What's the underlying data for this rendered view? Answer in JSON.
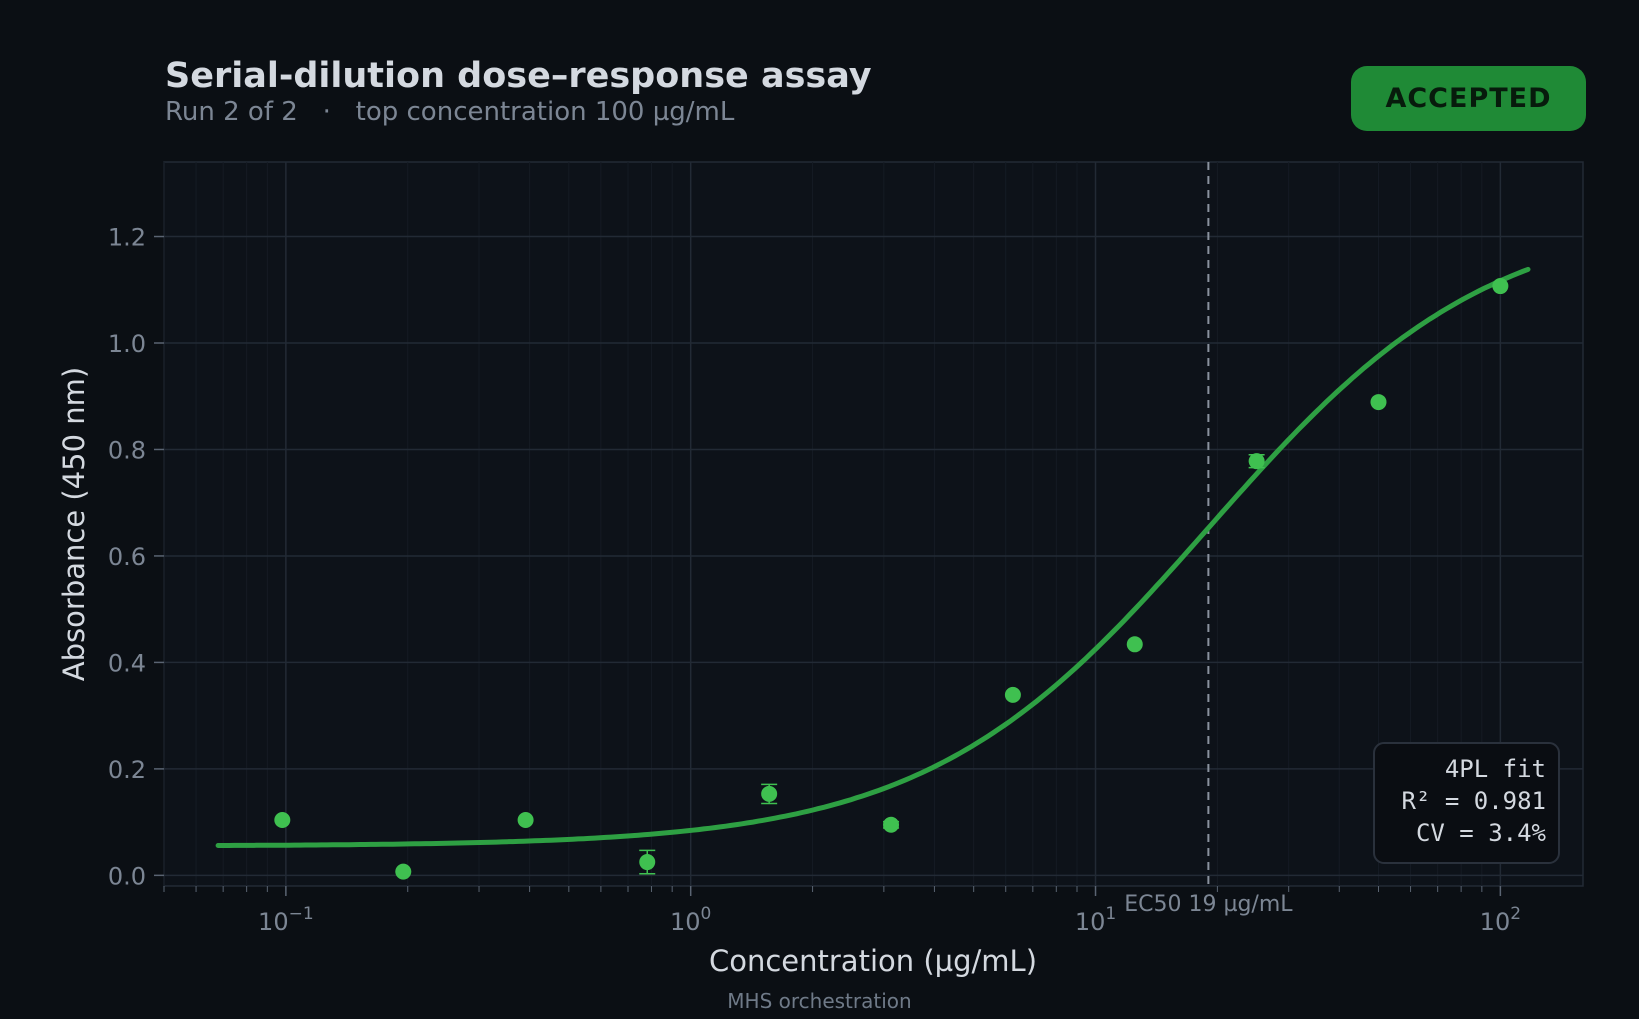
{
  "header": {
    "title": "Serial-dilution dose–response assay",
    "subtitle": "Run 2 of 2   ·   top concentration 100 µg/mL",
    "badge": "ACCEPTED"
  },
  "footer": "MHS orchestration",
  "colors": {
    "background": "#0b0f14",
    "plot_background": "#0d1219",
    "accent": "#2ea043",
    "points": "#3fc050",
    "badge": "#1f8a36"
  },
  "chart_data": {
    "type": "scatter",
    "xlabel": "Concentration  (µg/mL)",
    "ylabel": "Absorbance  (450 nm)",
    "x_scale": "log",
    "xlim": [
      0.05,
      160
    ],
    "ylim": [
      -0.02,
      1.34
    ],
    "x_ticks": [
      {
        "value": 0.1,
        "base": "10",
        "exp": "−1"
      },
      {
        "value": 1,
        "base": "10",
        "exp": "0"
      },
      {
        "value": 10,
        "base": "10",
        "exp": "1"
      },
      {
        "value": 100,
        "base": "10",
        "exp": "2"
      }
    ],
    "y_ticks": [
      {
        "value": 0.0,
        "label": "0.0"
      },
      {
        "value": 0.2,
        "label": "0.2"
      },
      {
        "value": 0.4,
        "label": "0.4"
      },
      {
        "value": 0.6,
        "label": "0.6"
      },
      {
        "value": 0.8,
        "label": "0.8"
      },
      {
        "value": 1.0,
        "label": "1.0"
      },
      {
        "value": 1.2,
        "label": "1.2"
      }
    ],
    "grid": true,
    "points": [
      {
        "x": 0.098,
        "y": 0.104,
        "err": 0.0
      },
      {
        "x": 0.195,
        "y": 0.007,
        "err": 0.0
      },
      {
        "x": 0.391,
        "y": 0.104,
        "err": 0.0
      },
      {
        "x": 0.781,
        "y": 0.025,
        "err": 0.022
      },
      {
        "x": 1.5625,
        "y": 0.153,
        "err": 0.018
      },
      {
        "x": 3.125,
        "y": 0.095,
        "err": 0.006
      },
      {
        "x": 6.25,
        "y": 0.339,
        "err": 0.0
      },
      {
        "x": 12.5,
        "y": 0.434,
        "err": 0.0
      },
      {
        "x": 25,
        "y": 0.778,
        "err": 0.012
      },
      {
        "x": 50,
        "y": 0.889,
        "err": 0.0
      },
      {
        "x": 100,
        "y": 1.107,
        "err": 0.0
      }
    ],
    "fit": {
      "model": "4PL",
      "bottom": 0.055,
      "top": 1.25,
      "ec50_param": 19,
      "hill": 1.25,
      "x_range": [
        0.068,
        117
      ]
    },
    "ec50": {
      "x": 19,
      "label": "EC50 19 µg/mL"
    },
    "annotation": {
      "lines": [
        "4PL fit",
        "R² = 0.981",
        "CV = 3.4%"
      ],
      "placement": "bottom-right"
    }
  }
}
